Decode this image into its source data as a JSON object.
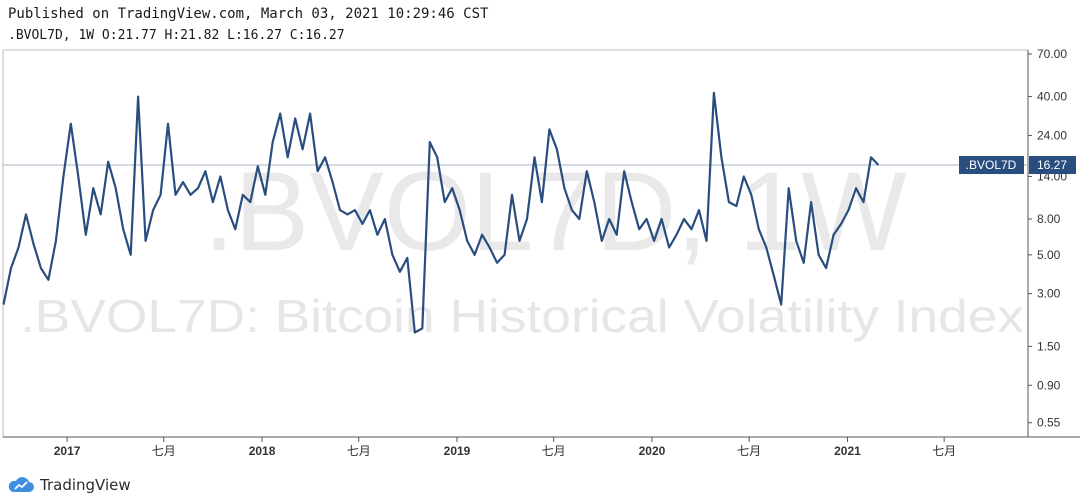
{
  "header": {
    "published": "Published on TradingView.com, March 03, 2021 10:29:46 CST",
    "ohlc": ".BVOL7D, 1W O:21.77 H:21.82 L:16.27 C:16.27"
  },
  "watermark": {
    "symbol": ".BVOL7D, 1W",
    "description": ".BVOL7D: Bitcoin Historical Volatility Index"
  },
  "branding": {
    "name": "TradingView"
  },
  "colors": {
    "line": "#2a4d7f",
    "label_bg": "#2a4d7f",
    "watermark": "#e6e6e6",
    "axis": "#333333"
  },
  "chart_data": {
    "type": "line",
    "scale": "log",
    "symbol": ".BVOL7D",
    "interval": "1W",
    "ylim": [
      0.5,
      70
    ],
    "y_ticks": [
      70,
      40,
      24,
      14,
      8,
      5,
      3,
      1.5,
      0.9,
      0.55
    ],
    "y_tick_labels": [
      "70.00",
      "40.00",
      "24.00",
      "14.00",
      "8.00",
      "5.00",
      "3.00",
      "1.50",
      "0.90",
      "0.55"
    ],
    "x_ticks": [
      {
        "date": "2017-01-01",
        "label": "2017",
        "major": true
      },
      {
        "date": "2017-07-01",
        "label": "七月",
        "major": false
      },
      {
        "date": "2018-01-01",
        "label": "2018",
        "major": true
      },
      {
        "date": "2018-07-01",
        "label": "七月",
        "major": false
      },
      {
        "date": "2019-01-01",
        "label": "2019",
        "major": true
      },
      {
        "date": "2019-07-01",
        "label": "七月",
        "major": false
      },
      {
        "date": "2020-01-01",
        "label": "2020",
        "major": true
      },
      {
        "date": "2020-07-01",
        "label": "七月",
        "major": false
      },
      {
        "date": "2021-01-01",
        "label": "2021",
        "major": true
      },
      {
        "date": "2021-07-01",
        "label": "七月",
        "major": false
      }
    ],
    "xlim": [
      "2016-09-03",
      "2021-12-05"
    ],
    "last_value": 16.27,
    "last_value_label": ".BVOL7D",
    "last_value_text": "16.27",
    "series": [
      {
        "x": [
          "2016-09-04",
          "2016-09-18",
          "2016-10-02",
          "2016-10-16",
          "2016-10-30",
          "2016-11-13",
          "2016-11-27",
          "2016-12-11",
          "2016-12-25",
          "2017-01-08",
          "2017-01-22",
          "2017-02-05",
          "2017-02-19",
          "2017-03-05",
          "2017-03-19",
          "2017-04-02",
          "2017-04-16",
          "2017-04-30",
          "2017-05-14",
          "2017-05-28",
          "2017-06-11",
          "2017-06-25",
          "2017-07-09",
          "2017-07-23",
          "2017-08-06",
          "2017-08-20",
          "2017-09-03",
          "2017-09-17",
          "2017-10-01",
          "2017-10-15",
          "2017-10-29",
          "2017-11-12",
          "2017-11-26",
          "2017-12-10",
          "2017-12-24",
          "2018-01-07",
          "2018-01-21",
          "2018-02-04",
          "2018-02-18",
          "2018-03-04",
          "2018-03-18",
          "2018-04-01",
          "2018-04-15",
          "2018-04-29",
          "2018-05-13",
          "2018-05-27",
          "2018-06-10",
          "2018-06-24",
          "2018-07-08",
          "2018-07-22",
          "2018-08-05",
          "2018-08-19",
          "2018-09-02",
          "2018-09-16",
          "2018-09-30",
          "2018-10-14",
          "2018-10-28",
          "2018-11-11",
          "2018-11-25",
          "2018-12-09",
          "2018-12-23",
          "2019-01-06",
          "2019-01-20",
          "2019-02-03",
          "2019-02-17",
          "2019-03-03",
          "2019-03-17",
          "2019-03-31",
          "2019-04-14",
          "2019-04-28",
          "2019-05-12",
          "2019-05-26",
          "2019-06-09",
          "2019-06-23",
          "2019-07-07",
          "2019-07-21",
          "2019-08-04",
          "2019-08-18",
          "2019-09-01",
          "2019-09-15",
          "2019-09-29",
          "2019-10-13",
          "2019-10-27",
          "2019-11-10",
          "2019-11-24",
          "2019-12-08",
          "2019-12-22",
          "2020-01-05",
          "2020-01-19",
          "2020-02-02",
          "2020-02-16",
          "2020-03-01",
          "2020-03-15",
          "2020-03-29",
          "2020-04-12",
          "2020-04-26",
          "2020-05-10",
          "2020-05-24",
          "2020-06-07",
          "2020-06-21",
          "2020-07-05",
          "2020-07-19",
          "2020-08-02",
          "2020-08-16",
          "2020-08-30",
          "2020-09-13",
          "2020-09-27",
          "2020-10-11",
          "2020-10-25",
          "2020-11-08",
          "2020-11-22",
          "2020-12-06",
          "2020-12-20",
          "2021-01-03",
          "2021-01-17",
          "2021-01-31",
          "2021-02-14",
          "2021-02-28"
        ],
        "y": [
          2.6,
          4.2,
          5.5,
          8.5,
          5.8,
          4.2,
          3.6,
          6.0,
          14.0,
          28.0,
          14.0,
          6.5,
          12.0,
          8.5,
          17.0,
          12.0,
          7.0,
          5.0,
          40.0,
          6.0,
          9.0,
          11.0,
          28.0,
          11.0,
          13.0,
          11.0,
          12.0,
          15.0,
          10.0,
          14.0,
          9.0,
          7.0,
          11.0,
          10.0,
          16.0,
          11.0,
          22.0,
          32.0,
          18.0,
          30.0,
          20.0,
          32.0,
          15.0,
          18.0,
          13.0,
          9.0,
          8.5,
          9.0,
          7.5,
          9.0,
          6.5,
          8.0,
          5.0,
          4.0,
          4.8,
          1.8,
          1.9,
          22.0,
          18.0,
          10.0,
          12.0,
          9.0,
          6.0,
          5.0,
          6.5,
          5.5,
          4.5,
          5.0,
          11.0,
          6.0,
          8.0,
          18.0,
          10.0,
          26.0,
          20.0,
          12.0,
          9.0,
          8.0,
          15.0,
          10.0,
          6.0,
          8.0,
          6.5,
          15.0,
          10.0,
          7.0,
          8.0,
          6.0,
          8.0,
          5.5,
          6.5,
          8.0,
          7.0,
          9.0,
          6.0,
          42.0,
          18.0,
          10.0,
          9.5,
          14.0,
          11.0,
          7.0,
          5.5,
          3.8,
          2.6,
          12.0,
          6.0,
          4.5,
          10.0,
          5.0,
          4.2,
          6.5,
          7.5,
          9.0,
          12.0,
          10.0,
          18.0,
          16.27
        ]
      }
    ]
  }
}
